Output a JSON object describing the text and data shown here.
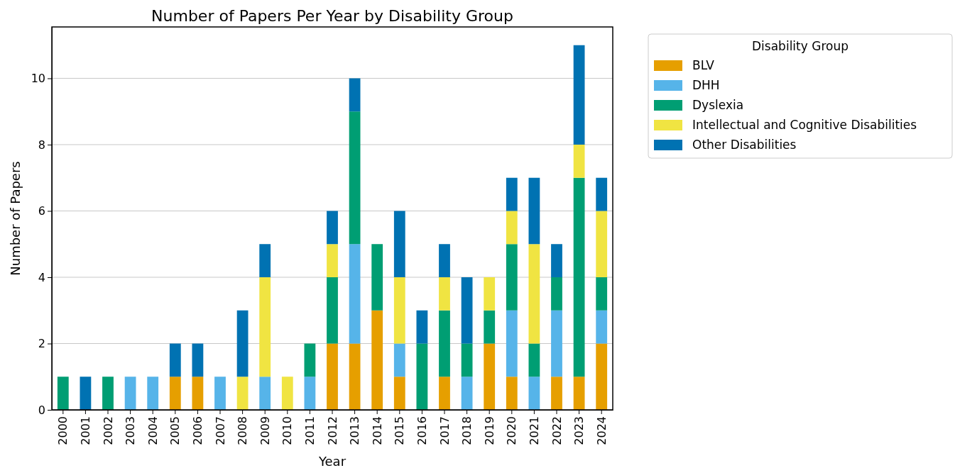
{
  "chart_data": {
    "type": "bar",
    "title": "Number of Papers Per Year by Disability Group",
    "xlabel": "Year",
    "ylabel": "Number of Papers",
    "legend_title": "Disability Group",
    "categories": [
      "2000",
      "2001",
      "2002",
      "2003",
      "2004",
      "2005",
      "2006",
      "2007",
      "2008",
      "2009",
      "2010",
      "2011",
      "2012",
      "2013",
      "2014",
      "2015",
      "2016",
      "2017",
      "2018",
      "2019",
      "2020",
      "2021",
      "2022",
      "2023",
      "2024"
    ],
    "stacked": true,
    "ylim": [
      0,
      11.55
    ],
    "yticks": [
      0,
      2,
      4,
      6,
      8,
      10
    ],
    "grid": "y",
    "legend": "right",
    "series": [
      {
        "name": "BLV",
        "color": "#e69f00",
        "values": [
          0,
          0,
          0,
          0,
          0,
          1,
          1,
          0,
          0,
          0,
          0,
          0,
          2,
          2,
          3,
          1,
          0,
          1,
          0,
          2,
          1,
          0,
          1,
          1,
          2
        ]
      },
      {
        "name": "DHH",
        "color": "#56b4e9",
        "values": [
          0,
          0,
          0,
          1,
          1,
          0,
          0,
          1,
          0,
          1,
          0,
          1,
          0,
          3,
          0,
          1,
          0,
          0,
          1,
          0,
          2,
          1,
          2,
          0,
          1
        ]
      },
      {
        "name": "Dyslexia",
        "color": "#009e73",
        "values": [
          1,
          0,
          1,
          0,
          0,
          0,
          0,
          0,
          0,
          0,
          0,
          1,
          2,
          4,
          2,
          0,
          2,
          2,
          1,
          1,
          2,
          1,
          1,
          6,
          1
        ]
      },
      {
        "name": "Intellectual and Cognitive Disabilities",
        "color": "#f0e442",
        "values": [
          0,
          0,
          0,
          0,
          0,
          0,
          0,
          0,
          1,
          3,
          1,
          0,
          1,
          0,
          0,
          2,
          0,
          1,
          0,
          1,
          1,
          3,
          0,
          1,
          2
        ]
      },
      {
        "name": "Other Disabilities",
        "color": "#0072b2",
        "values": [
          0,
          1,
          0,
          0,
          0,
          1,
          1,
          0,
          2,
          1,
          0,
          0,
          1,
          1,
          0,
          2,
          1,
          1,
          2,
          0,
          1,
          2,
          1,
          3,
          1
        ]
      }
    ]
  }
}
